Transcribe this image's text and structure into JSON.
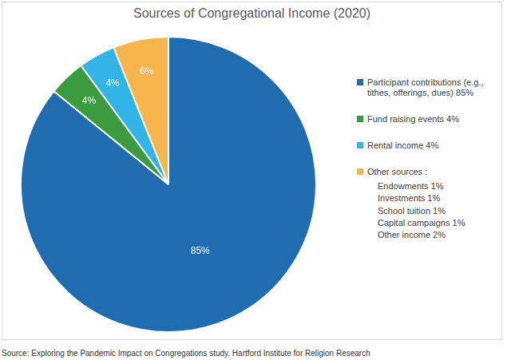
{
  "chart_data": {
    "type": "pie",
    "title": "Sources of Congregational Income (2020)",
    "categories": [
      "Participant contributions (e.g., tithes, offerings, dues) 85%",
      "Fund raising events 4%",
      "Rental income 4%",
      "Other sources :"
    ],
    "values": [
      85,
      4,
      4,
      6
    ],
    "value_labels": [
      "85%",
      "4%",
      "4%",
      "6%"
    ],
    "colors": [
      "#1f6cb0",
      "#3a9b3f",
      "#33b4e8",
      "#f8b54e"
    ],
    "data_labels": true,
    "legend": "right",
    "breakdown": [
      "Endowments 1%",
      "Investments 1%",
      "School tuition 1%",
      "Capital campaigns 1%",
      "Other income 2%"
    ]
  },
  "source": "Source: Exploring the Pandemic Impact on Congregations study, Hartford Institute for Religion Research"
}
